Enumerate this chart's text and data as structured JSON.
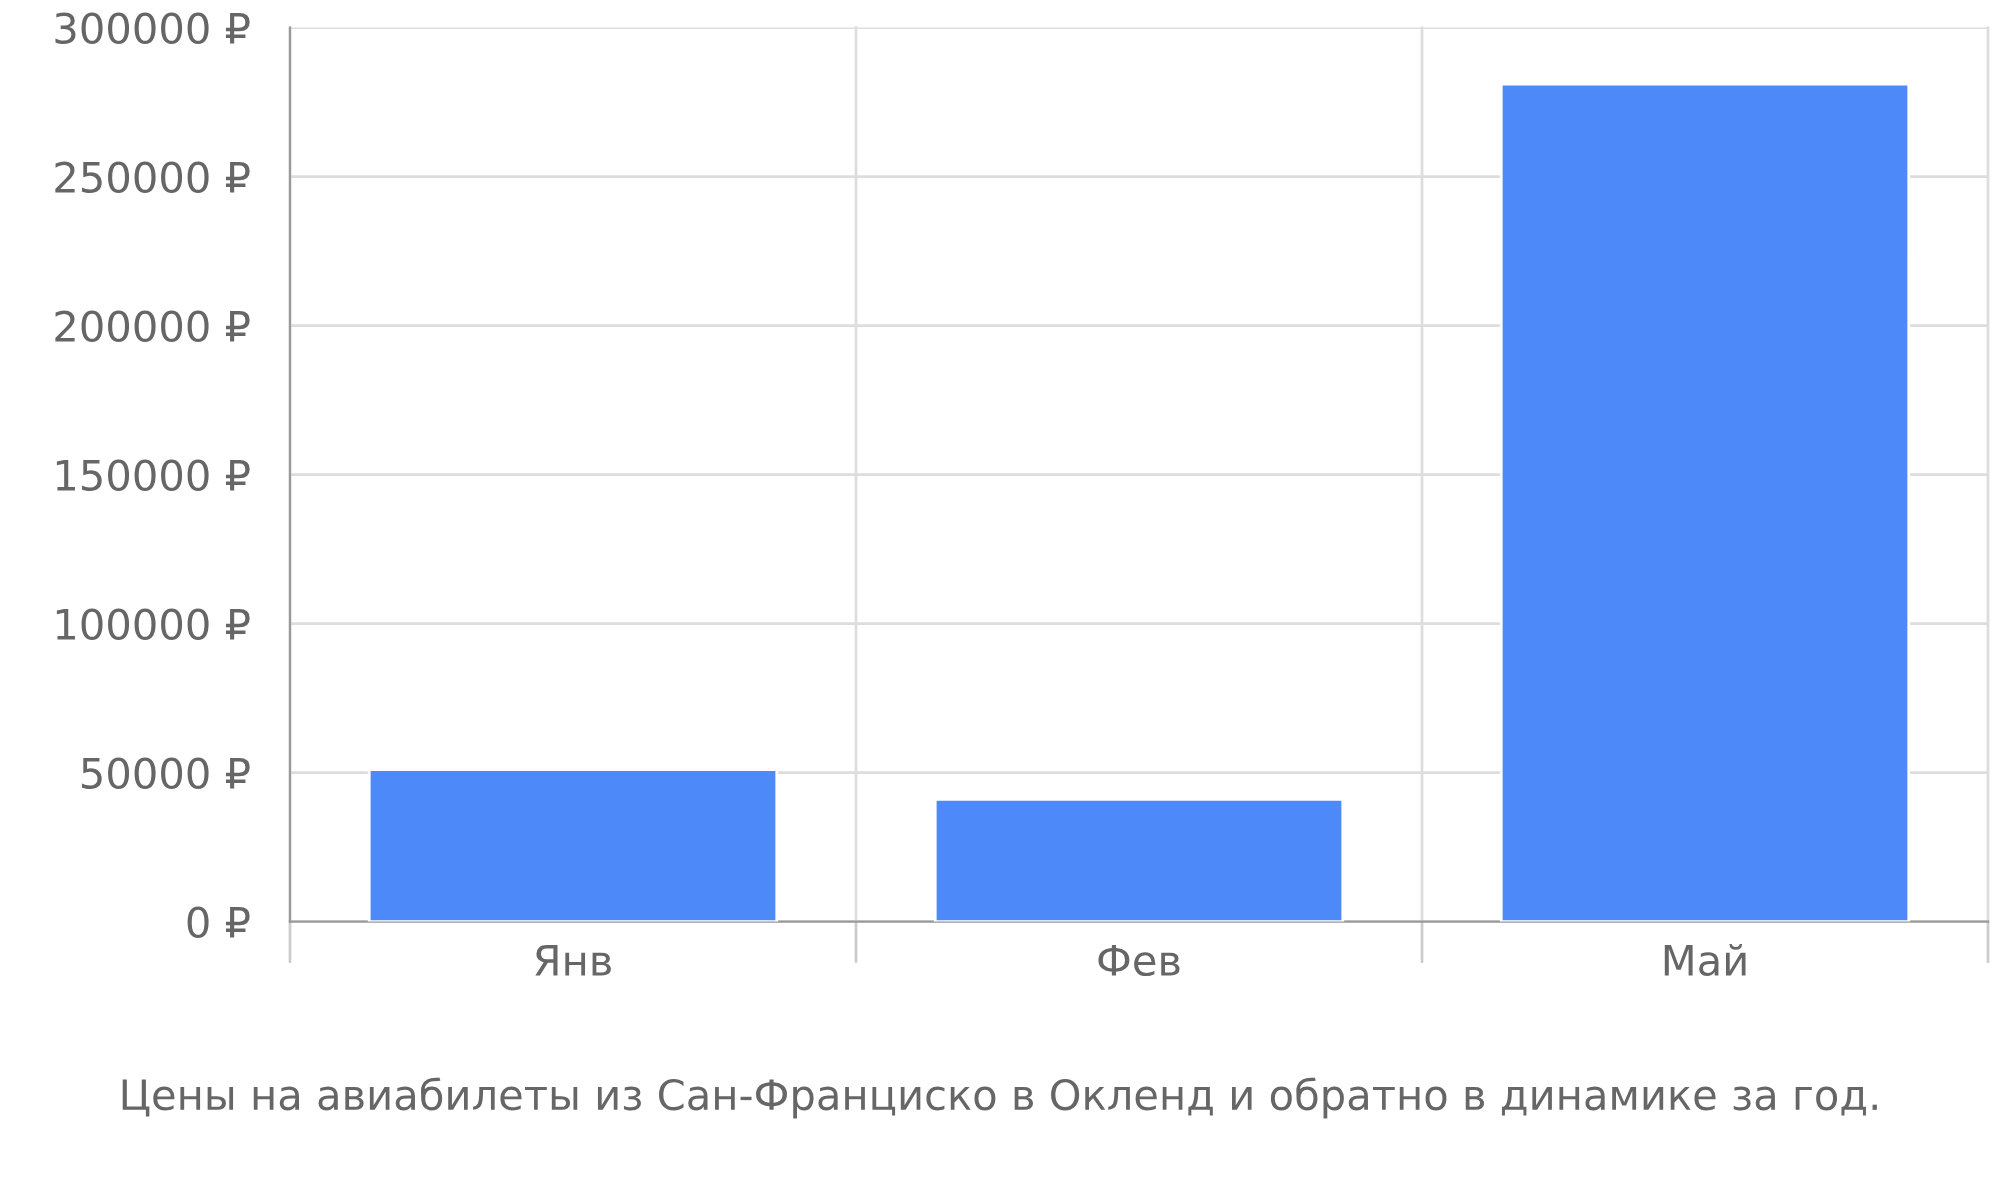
{
  "chart_data": {
    "type": "bar",
    "categories": [
      "Янв",
      "Фев",
      "Май"
    ],
    "series": [
      {
        "color": "#4d89f9",
        "values": [
          51000,
          41000,
          281000
        ]
      }
    ],
    "ylim": [
      0,
      300000
    ],
    "yticks": [
      {
        "value": 0,
        "label": "0 ₽"
      },
      {
        "value": 50000,
        "label": "50000 ₽"
      },
      {
        "value": 100000,
        "label": "100000 ₽"
      },
      {
        "value": 150000,
        "label": "150000 ₽"
      },
      {
        "value": 200000,
        "label": "200000 ₽"
      },
      {
        "value": 250000,
        "label": "250000 ₽"
      },
      {
        "value": 300000,
        "label": "300000 ₽"
      }
    ],
    "grid": true,
    "legend": false,
    "annotations": [
      "Цены на авиабилеты из Сан-Франциско в Окленд и обратно в динамике за год."
    ]
  }
}
